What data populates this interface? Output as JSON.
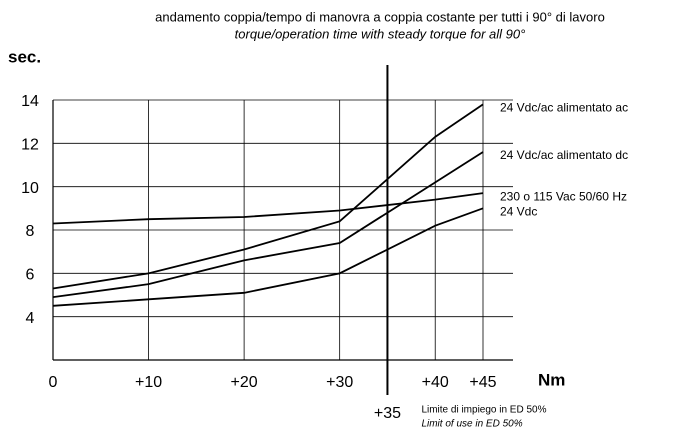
{
  "chart_data": {
    "type": "line",
    "title": "andamento coppia/tempo di manovra a coppia costante per tutti i 90° di lavoro",
    "subtitle": "torque/operation time with steady torque for all 90°",
    "y_label": "sec.",
    "x_label": "Nm",
    "x": [
      0,
      10,
      20,
      30,
      40,
      45
    ],
    "series": [
      {
        "name": "24 Vdc/ac alimentato ac",
        "color": "#000000",
        "values": [
          5.3,
          6.0,
          7.1,
          8.4,
          12.3,
          13.8
        ]
      },
      {
        "name": "24 Vdc/ac alimentato dc",
        "color": "#000000",
        "values": [
          4.9,
          5.5,
          6.6,
          7.4,
          10.2,
          11.6
        ]
      },
      {
        "name": "230 o 115 Vac 50/60 Hz",
        "color": "#000000",
        "values": [
          8.3,
          8.5,
          8.6,
          8.9,
          9.4,
          9.7
        ]
      },
      {
        "name": "24 Vdc",
        "color": "#000000",
        "values": [
          4.5,
          4.8,
          5.1,
          6.0,
          8.2,
          9.0
        ]
      }
    ],
    "xlim": [
      0,
      45
    ],
    "ylim": [
      2,
      14
    ],
    "xticks": [
      0,
      {
        "value": 10,
        "label": "+10"
      },
      {
        "value": 20,
        "label": "+20"
      },
      {
        "value": 30,
        "label": "+30"
      },
      {
        "value": 40,
        "label": "+40"
      },
      {
        "value": 45,
        "label": "+45"
      }
    ],
    "yticks": [
      4,
      6,
      8,
      10,
      12,
      14
    ],
    "grid": true,
    "limit": {
      "value": 35,
      "label": "+35",
      "text": "Limite di impiego in ED 50%",
      "text_en": "Limit of use in ED 50%"
    }
  }
}
